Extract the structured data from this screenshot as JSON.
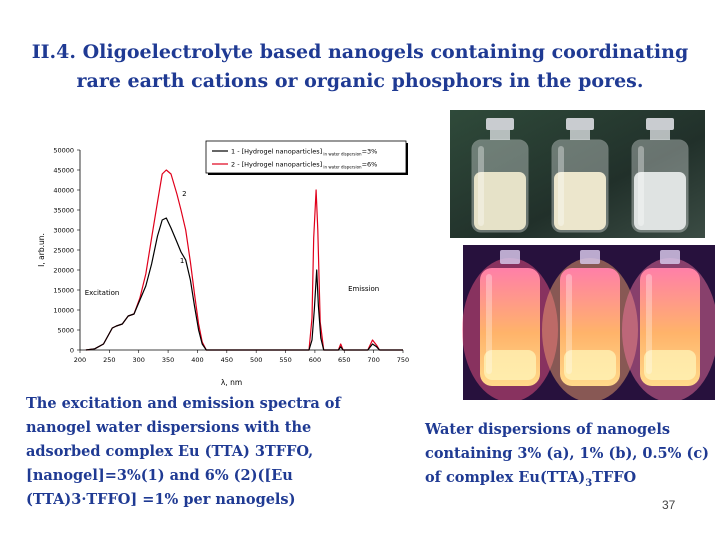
{
  "slide": {
    "title": "II.4. Oligoelectrolyte based nanogels containing coordinating rare earth cations or organic phosphors in the pores.",
    "caption_left": "The excitation and emission spectra of nanogel water dispersions with the adsorbed complex Eu (TTA) 3TFFO, [nanogel]=3%(1) and 6% (2)([Eu (TTA)3·TFFO] =1% per nanogels)",
    "caption_right_main": "Water dispersions of nanogels containing 3% (a), 1% (b), 0.5% (c) of complex Eu(TTA)",
    "caption_right_sub": "3",
    "caption_right_tail": "TFFO",
    "page_number": "37"
  },
  "chart_data": {
    "type": "line",
    "xlabel": "λ, nm",
    "ylabel": "I, arb.un.",
    "xlim": [
      200,
      750
    ],
    "ylim": [
      0,
      50000
    ],
    "x_ticks": [
      200,
      250,
      300,
      350,
      400,
      450,
      500,
      550,
      600,
      650,
      700,
      750
    ],
    "y_ticks": [
      0,
      5000,
      10000,
      15000,
      20000,
      25000,
      30000,
      35000,
      40000,
      45000,
      50000
    ],
    "legend_position": "top-right",
    "annotations": [
      "Excitation",
      "Emission",
      "1",
      "2"
    ],
    "series": [
      {
        "name": "1 - [Hydrogel nanoparticles]",
        "legend_sub": "in water dispersion",
        "legend_tail": "=3%",
        "color": "#000000",
        "points": [
          [
            210,
            0
          ],
          [
            225,
            300
          ],
          [
            240,
            1500
          ],
          [
            255,
            5500
          ],
          [
            262,
            6000
          ],
          [
            272,
            6500
          ],
          [
            282,
            8500
          ],
          [
            292,
            9000
          ],
          [
            302,
            12500
          ],
          [
            312,
            16000
          ],
          [
            322,
            21500
          ],
          [
            332,
            28500
          ],
          [
            340,
            32500
          ],
          [
            347,
            33000
          ],
          [
            355,
            30500
          ],
          [
            365,
            27000
          ],
          [
            372,
            24500
          ],
          [
            380,
            22500
          ],
          [
            388,
            17500
          ],
          [
            395,
            11000
          ],
          [
            402,
            5000
          ],
          [
            408,
            1500
          ],
          [
            415,
            0
          ],
          [
            590,
            0
          ],
          [
            595,
            2500
          ],
          [
            599,
            10000
          ],
          [
            603,
            20000
          ],
          [
            606,
            11000
          ],
          [
            610,
            3000
          ],
          [
            615,
            0
          ],
          [
            640,
            0
          ],
          [
            644,
            800
          ],
          [
            648,
            0
          ],
          [
            690,
            0
          ],
          [
            698,
            1500
          ],
          [
            705,
            800
          ],
          [
            710,
            0
          ],
          [
            750,
            0
          ]
        ]
      },
      {
        "name": "2 - [Hydrogel nanoparticles]",
        "legend_sub": "in water dispersion",
        "legend_tail": "=6%",
        "color": "#e0001b",
        "points": [
          [
            210,
            0
          ],
          [
            225,
            300
          ],
          [
            240,
            1500
          ],
          [
            255,
            5500
          ],
          [
            262,
            6000
          ],
          [
            272,
            6500
          ],
          [
            282,
            8500
          ],
          [
            292,
            9000
          ],
          [
            302,
            13000
          ],
          [
            312,
            19000
          ],
          [
            322,
            28000
          ],
          [
            332,
            37000
          ],
          [
            340,
            44000
          ],
          [
            347,
            45000
          ],
          [
            355,
            44000
          ],
          [
            365,
            39000
          ],
          [
            372,
            35000
          ],
          [
            380,
            30000
          ],
          [
            388,
            22000
          ],
          [
            395,
            14000
          ],
          [
            402,
            6500
          ],
          [
            408,
            2000
          ],
          [
            415,
            0
          ],
          [
            590,
            0
          ],
          [
            595,
            8000
          ],
          [
            598,
            28000
          ],
          [
            602,
            40000
          ],
          [
            605,
            30000
          ],
          [
            609,
            7000
          ],
          [
            615,
            0
          ],
          [
            640,
            0
          ],
          [
            644,
            1500
          ],
          [
            648,
            0
          ],
          [
            690,
            0
          ],
          [
            698,
            2500
          ],
          [
            705,
            1200
          ],
          [
            710,
            0
          ],
          [
            750,
            0
          ]
        ]
      }
    ]
  },
  "photos": {
    "top_vials": [
      "#e6e2c8",
      "#ece6cc",
      "#dfe3e2"
    ],
    "bottom_glow_colors": [
      "#ff5a8a",
      "#ffb070",
      "#ff7aa6"
    ]
  }
}
